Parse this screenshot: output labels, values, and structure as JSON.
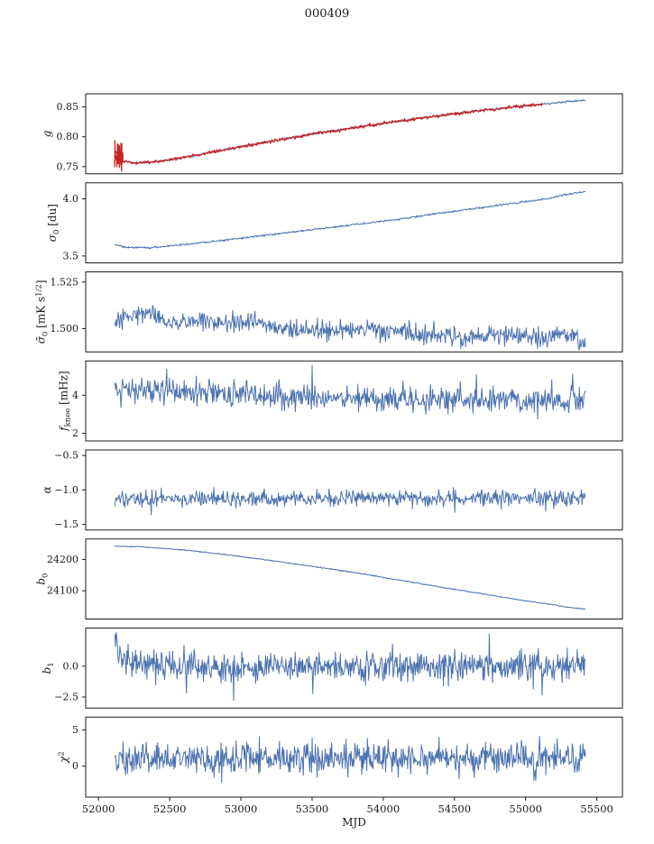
{
  "chart_data": {
    "type": "line",
    "title": "000409",
    "xlabel": "MJD",
    "axis_color": "#1a1a1a",
    "line_color": "#4c72b0",
    "highlight_color": "#cc2222",
    "x_range": [
      51910,
      55680
    ],
    "x_ticks": [
      {
        "v": 52000,
        "label": "52000"
      },
      {
        "v": 52500,
        "label": "52500"
      },
      {
        "v": 53000,
        "label": "53000"
      },
      {
        "v": 53500,
        "label": "53500"
      },
      {
        "v": 54000,
        "label": "54000"
      },
      {
        "v": 54500,
        "label": "54500"
      },
      {
        "v": 55000,
        "label": "55000"
      },
      {
        "v": 55500,
        "label": "55500"
      }
    ],
    "panels": [
      {
        "name": "gain",
        "ylabel": [
          {
            "t": "g",
            "i": 1
          }
        ],
        "ylim": [
          0.738,
          0.872
        ],
        "yticks": [
          {
            "v": 0.85,
            "label": "0.85"
          },
          {
            "v": 0.8,
            "label": "0.80"
          },
          {
            "v": 0.75,
            "label": "0.75"
          }
        ],
        "series": [
          {
            "color": "#4c72b0",
            "w": 1.0,
            "n": 800,
            "x0": 52115,
            "x1": 55420,
            "seed": 11,
            "noise": 0.0008,
            "anchors": [
              [
                52115,
                0.778
              ],
              [
                52160,
                0.76
              ],
              [
                52250,
                0.7565
              ],
              [
                52400,
                0.758
              ],
              [
                52600,
                0.7655
              ],
              [
                52900,
                0.779
              ],
              [
                53200,
                0.792
              ],
              [
                53500,
                0.8045
              ],
              [
                53800,
                0.8155
              ],
              [
                54100,
                0.826
              ],
              [
                54400,
                0.8355
              ],
              [
                54700,
                0.8445
              ],
              [
                55000,
                0.852
              ],
              [
                55200,
                0.8565
              ],
              [
                55420,
                0.8615
              ]
            ]
          },
          {
            "color": "#cc2222",
            "w": 1.2,
            "n": 700,
            "x0": 52118,
            "x1": 55120,
            "seed": 12,
            "noise": 0.0013,
            "anchors": [
              [
                52115,
                0.778
              ],
              [
                52160,
                0.76
              ],
              [
                52250,
                0.7565
              ],
              [
                52400,
                0.758
              ],
              [
                52600,
                0.7655
              ],
              [
                52900,
                0.779
              ],
              [
                53200,
                0.792
              ],
              [
                53500,
                0.8045
              ],
              [
                53800,
                0.8155
              ],
              [
                54100,
                0.826
              ],
              [
                54400,
                0.8355
              ],
              [
                54700,
                0.8445
              ],
              [
                55000,
                0.852
              ],
              [
                55120,
                0.8545
              ]
            ]
          },
          {
            "color": "#cc2222",
            "w": 1.2,
            "n": 38,
            "x0": 52112,
            "x1": 52172,
            "seed": 13,
            "noise": 0.011,
            "anchors": [
              [
                52112,
                0.779
              ],
              [
                52140,
                0.768
              ],
              [
                52172,
                0.7595
              ]
            ]
          }
        ]
      },
      {
        "name": "sigma0",
        "ylabel": [
          {
            "t": "σ",
            "i": 1
          },
          {
            "t": "0",
            "sub": 1
          },
          {
            "t": " [du]"
          }
        ],
        "ylim": [
          3.44,
          4.14
        ],
        "yticks": [
          {
            "v": 4.0,
            "label": "4.0"
          },
          {
            "v": 3.5,
            "label": "3.5"
          }
        ],
        "series": [
          {
            "color": "#4c72b0",
            "w": 1.0,
            "n": 800,
            "x0": 52115,
            "x1": 55420,
            "seed": 21,
            "noise": 0.004,
            "anchors": [
              [
                52115,
                3.6
              ],
              [
                52200,
                3.575
              ],
              [
                52350,
                3.572
              ],
              [
                52600,
                3.6
              ],
              [
                52900,
                3.64
              ],
              [
                53200,
                3.685
              ],
              [
                53500,
                3.73
              ],
              [
                53800,
                3.775
              ],
              [
                54100,
                3.82
              ],
              [
                54400,
                3.875
              ],
              [
                54700,
                3.925
              ],
              [
                55000,
                3.975
              ],
              [
                55150,
                4.0
              ],
              [
                55250,
                4.03
              ],
              [
                55420,
                4.065
              ]
            ]
          }
        ]
      },
      {
        "name": "sigma0_tilde",
        "ylabel": [
          {
            "t": "σ̃",
            "i": 1
          },
          {
            "t": "0",
            "sub": 1
          },
          {
            "t": " [mK s"
          },
          {
            "t": "1/2",
            "sup": 1
          },
          {
            "t": "]"
          }
        ],
        "ylim": [
          1.4875,
          1.5305
        ],
        "yticks": [
          {
            "v": 1.525,
            "label": "1.525"
          },
          {
            "v": 1.5,
            "label": "1.500"
          }
        ],
        "series": [
          {
            "color": "#4c72b0",
            "w": 1.0,
            "n": 700,
            "x0": 52115,
            "x1": 55420,
            "seed": 31,
            "noise": 0.0026,
            "anchors": [
              [
                52115,
                1.502
              ],
              [
                52250,
                1.508
              ],
              [
                52350,
                1.51
              ],
              [
                52500,
                1.503
              ],
              [
                52700,
                1.5045
              ],
              [
                52900,
                1.502
              ],
              [
                53100,
                1.5035
              ],
              [
                53300,
                1.5
              ],
              [
                53600,
                1.4985
              ],
              [
                53900,
                1.4995
              ],
              [
                54200,
                1.497
              ],
              [
                54500,
                1.4965
              ],
              [
                54800,
                1.4955
              ],
              [
                55000,
                1.4975
              ],
              [
                55100,
                1.494
              ],
              [
                55250,
                1.4985
              ],
              [
                55420,
                1.492
              ]
            ]
          }
        ]
      },
      {
        "name": "f_knee",
        "ylabel": [
          {
            "t": "f",
            "i": 1
          },
          {
            "t": "knee",
            "sub": 1
          },
          {
            "t": " [mHz]"
          }
        ],
        "ylim": [
          1.6,
          5.8
        ],
        "yticks": [
          {
            "v": 4,
            "label": "4"
          },
          {
            "v": 2,
            "label": "2"
          }
        ],
        "series": [
          {
            "color": "#4c72b0",
            "w": 1.0,
            "n": 700,
            "x0": 52115,
            "x1": 55420,
            "seed": 41,
            "noise": 0.34,
            "spike_prob": 0.05,
            "spike_scale": 2.1,
            "anchors": [
              [
                52115,
                4.35
              ],
              [
                52400,
                4.2
              ],
              [
                52800,
                4.1
              ],
              [
                53200,
                3.95
              ],
              [
                53600,
                3.85
              ],
              [
                54000,
                3.8
              ],
              [
                54400,
                3.85
              ],
              [
                54800,
                3.75
              ],
              [
                55100,
                3.7
              ],
              [
                55420,
                3.75
              ]
            ]
          }
        ]
      },
      {
        "name": "alpha",
        "ylabel": [
          {
            "t": "α",
            "i": 1
          }
        ],
        "ylim": [
          -1.58,
          -0.42
        ],
        "yticks": [
          {
            "v": -0.5,
            "label": "−0.5"
          },
          {
            "v": -1.0,
            "label": "−1.0"
          },
          {
            "v": -1.5,
            "label": "−1.5"
          }
        ],
        "series": [
          {
            "color": "#4c72b0",
            "w": 1.0,
            "n": 700,
            "x0": 52115,
            "x1": 55420,
            "seed": 51,
            "noise": 0.055,
            "spike_prob": 0.04,
            "spike_scale": 1.9,
            "anchors": [
              [
                52115,
                -1.12
              ],
              [
                53000,
                -1.13
              ],
              [
                54000,
                -1.12
              ],
              [
                55420,
                -1.12
              ]
            ]
          }
        ]
      },
      {
        "name": "b0",
        "ylabel": [
          {
            "t": "b",
            "i": 1
          },
          {
            "t": "0",
            "sub": 1
          }
        ],
        "ylim": [
          24010,
          24265
        ],
        "yticks": [
          {
            "v": 24200,
            "label": "24200"
          },
          {
            "v": 24100,
            "label": "24100"
          }
        ],
        "series": [
          {
            "color": "#4c72b0",
            "w": 1.0,
            "n": 800,
            "x0": 52115,
            "x1": 55420,
            "seed": 61,
            "noise": 0.8,
            "anchors": [
              [
                52115,
                24242
              ],
              [
                52300,
                24240
              ],
              [
                52600,
                24230
              ],
              [
                52900,
                24215
              ],
              [
                53200,
                24197
              ],
              [
                53500,
                24178
              ],
              [
                53800,
                24158
              ],
              [
                54100,
                24135
              ],
              [
                54400,
                24112
              ],
              [
                54700,
                24090
              ],
              [
                55000,
                24068
              ],
              [
                55200,
                24055
              ],
              [
                55300,
                24047
              ],
              [
                55420,
                24042
              ]
            ]
          }
        ]
      },
      {
        "name": "b1",
        "ylabel": [
          {
            "t": "b",
            "i": 1
          },
          {
            "t": "1",
            "sub": 1
          }
        ],
        "ylim": [
          -3.4,
          3.1
        ],
        "yticks": [
          {
            "v": 0.0,
            "label": "0.0"
          },
          {
            "v": -2.5,
            "label": "−2.5"
          }
        ],
        "series": [
          {
            "color": "#4c72b0",
            "w": 1.0,
            "n": 750,
            "x0": 52115,
            "x1": 55420,
            "seed": 71,
            "noise": 0.55,
            "spike_prob": 0.05,
            "spike_scale": 2.1,
            "anchors": [
              [
                52115,
                2.4
              ],
              [
                52140,
                1.4
              ],
              [
                52190,
                0.4
              ],
              [
                52280,
                0.1
              ],
              [
                52400,
                0.0
              ],
              [
                55420,
                0.0
              ]
            ]
          }
        ]
      },
      {
        "name": "chi2",
        "ylabel": [
          {
            "t": "χ",
            "i": 1
          },
          {
            "t": "2",
            "sup": 1
          }
        ],
        "ylim": [
          -4.3,
          6.8
        ],
        "yticks": [
          {
            "v": 5,
            "label": "5"
          },
          {
            "v": 0,
            "label": "0"
          }
        ],
        "series": [
          {
            "color": "#4c72b0",
            "w": 1.0,
            "n": 750,
            "x0": 52115,
            "x1": 55420,
            "seed": 81,
            "noise": 1.05,
            "spike_prob": 0.03,
            "spike_scale": 1.7,
            "anchors": [
              [
                52115,
                1.0
              ],
              [
                55420,
                1.0
              ]
            ]
          }
        ]
      }
    ]
  }
}
